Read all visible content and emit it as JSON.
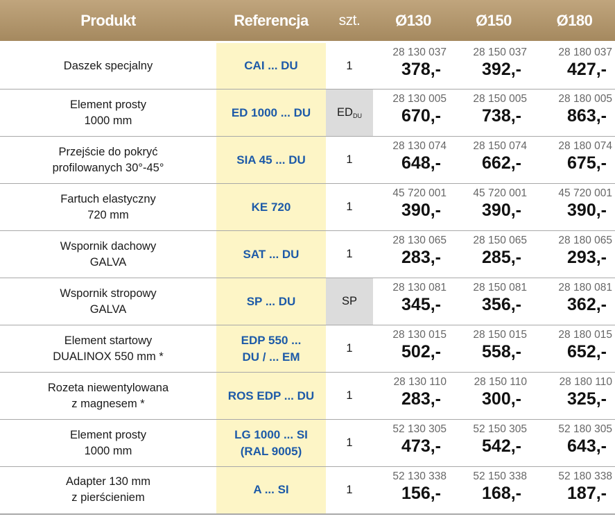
{
  "header": {
    "produkt": "Produkt",
    "referencja": "Referencja",
    "szt": "szt.",
    "d130": "Ø130",
    "d150": "Ø150",
    "d180": "Ø180"
  },
  "rows": [
    {
      "name1": "Daszek specjalny",
      "name2": "",
      "ref1": "CAI ... DU",
      "ref2": "",
      "qty": "1",
      "qty_sub": "",
      "codes": [
        "28 130 037",
        "28 150 037",
        "28 180 037"
      ],
      "prices": [
        "378,-",
        "392,-",
        "427,-"
      ]
    },
    {
      "name1": "Element prosty",
      "name2": "1000 mm",
      "ref1": "ED 1000 ... DU",
      "ref2": "",
      "qty": "ED",
      "qty_sub": "DU",
      "codes": [
        "28 130 005",
        "28 150 005",
        "28 180 005"
      ],
      "prices": [
        "670,-",
        "738,-",
        "863,-"
      ]
    },
    {
      "name1": "Przejście do pokryć",
      "name2": "profilowanych 30°-45°",
      "ref1": "SIA 45 ... DU",
      "ref2": "",
      "qty": "1",
      "qty_sub": "",
      "codes": [
        "28 130 074",
        "28 150 074",
        "28 180 074"
      ],
      "prices": [
        "648,-",
        "662,-",
        "675,-"
      ]
    },
    {
      "name1": "Fartuch elastyczny",
      "name2": "720 mm",
      "ref1": "KE 720",
      "ref2": "",
      "qty": "1",
      "qty_sub": "",
      "codes": [
        "45 720 001",
        "45 720 001",
        "45 720 001"
      ],
      "prices": [
        "390,-",
        "390,-",
        "390,-"
      ]
    },
    {
      "name1": "Wspornik dachowy",
      "name2": "GALVA",
      "ref1": "SAT ... DU",
      "ref2": "",
      "qty": "1",
      "qty_sub": "",
      "codes": [
        "28 130 065",
        "28 150 065",
        "28 180 065"
      ],
      "prices": [
        "283,-",
        "285,-",
        "293,-"
      ]
    },
    {
      "name1": "Wspornik stropowy",
      "name2": "GALVA",
      "ref1": "SP ... DU",
      "ref2": "",
      "qty": "SP",
      "qty_sub": "",
      "codes": [
        "28 130 081",
        "28 150 081",
        "28 180 081"
      ],
      "prices": [
        "345,-",
        "356,-",
        "362,-"
      ]
    },
    {
      "name1": "Element startowy",
      "name2": "DUALINOX 550 mm *",
      "ref1": "EDP 550 ...",
      "ref2": "DU / ... EM",
      "qty": "1",
      "qty_sub": "",
      "codes": [
        "28 130 015",
        "28 150 015",
        "28 180 015"
      ],
      "prices": [
        "502,-",
        "558,-",
        "652,-"
      ]
    },
    {
      "name1": "Rozeta niewentylowana",
      "name2": "z magnesem *",
      "ref1": "ROS EDP ... DU",
      "ref2": "",
      "qty": "1",
      "qty_sub": "",
      "codes": [
        "28 130 110",
        "28 150 110",
        "28 180 110"
      ],
      "prices": [
        "283,-",
        "300,-",
        "325,-"
      ]
    },
    {
      "name1": "Element prosty",
      "name2": "1000 mm",
      "ref1": "LG 1000 ... SI",
      "ref2": "(RAL 9005)",
      "qty": "1",
      "qty_sub": "",
      "codes": [
        "52 130 305",
        "52 150 305",
        "52 180 305"
      ],
      "prices": [
        "473,-",
        "542,-",
        "643,-"
      ]
    },
    {
      "name1": "Adapter 130 mm",
      "name2": "z pierścieniem",
      "ref1": "A ... SI",
      "ref2": "",
      "qty": "1",
      "qty_sub": "",
      "codes": [
        "52 130 338",
        "52 150 338",
        "52 180 338"
      ],
      "prices": [
        "156,-",
        "168,-",
        "187,-"
      ]
    }
  ]
}
